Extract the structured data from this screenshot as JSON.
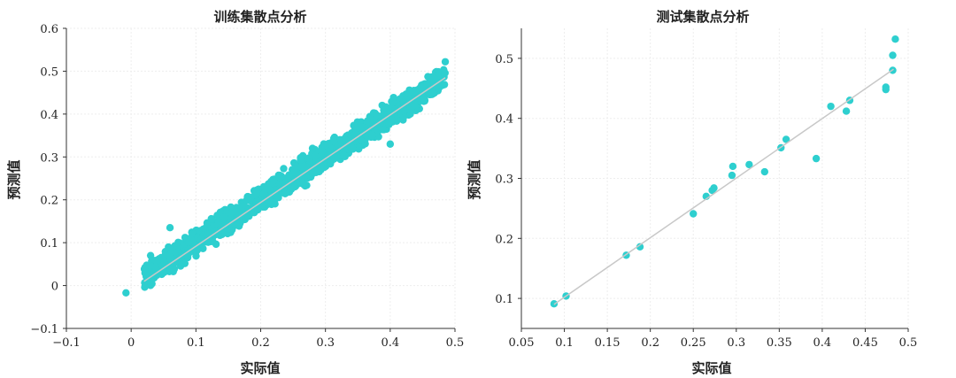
{
  "colors": {
    "point": "#2ecfcf",
    "line": "#c8c8c8"
  },
  "chart_data": [
    {
      "type": "scatter",
      "title": "训练集散点分析",
      "xlabel": "实际值",
      "ylabel": "预测值",
      "xlim": [
        -0.1,
        0.5
      ],
      "ylim": [
        -0.1,
        0.6
      ],
      "xticks": [
        -0.1,
        0,
        0.1,
        0.2,
        0.3,
        0.4,
        0.5
      ],
      "xtick_labels": [
        "−0.1",
        "0",
        "0.1",
        "0.2",
        "0.3",
        "0.4",
        "0.5"
      ],
      "yticks": [
        -0.1,
        0,
        0.1,
        0.2,
        0.3,
        0.4,
        0.5,
        0.6
      ],
      "ytick_labels": [
        "−0.1",
        "0",
        "0.1",
        "0.2",
        "0.3",
        "0.4",
        "0.5",
        "0.6"
      ],
      "grid": true,
      "reference_line": [
        [
          0.02,
          0.01
        ],
        [
          0.485,
          0.485
        ]
      ],
      "point_band": {
        "x_min": 0.02,
        "x_max": 0.485,
        "spread": 0.018,
        "count": 1300
      },
      "outliers": [
        [
          -0.008,
          -0.017
        ],
        [
          0.06,
          0.135
        ],
        [
          0.22,
          0.245
        ],
        [
          0.25,
          0.27
        ],
        [
          0.28,
          0.32
        ],
        [
          0.485,
          0.522
        ],
        [
          0.03,
          0.07
        ],
        [
          0.4,
          0.33
        ]
      ]
    },
    {
      "type": "scatter",
      "title": "测试集散点分析",
      "xlabel": "实际值",
      "ylabel": "预测值",
      "xlim": [
        0.05,
        0.5
      ],
      "ylim": [
        0.05,
        0.55
      ],
      "xticks": [
        0.05,
        0.1,
        0.15,
        0.2,
        0.25,
        0.3,
        0.35,
        0.4,
        0.45,
        0.5
      ],
      "xtick_labels": [
        "0.05",
        "0.1",
        "0.15",
        "0.2",
        "0.25",
        "0.3",
        "0.35",
        "0.4",
        "0.45",
        "0.5"
      ],
      "yticks": [
        0.1,
        0.2,
        0.3,
        0.4,
        0.5
      ],
      "ytick_labels": [
        "0.1",
        "0.2",
        "0.3",
        "0.4",
        "0.5"
      ],
      "grid": true,
      "reference_line": [
        [
          0.088,
          0.09
        ],
        [
          0.483,
          0.482
        ]
      ],
      "points": [
        [
          0.088,
          0.091
        ],
        [
          0.102,
          0.104
        ],
        [
          0.172,
          0.172
        ],
        [
          0.188,
          0.186
        ],
        [
          0.25,
          0.241
        ],
        [
          0.265,
          0.27
        ],
        [
          0.272,
          0.28
        ],
        [
          0.274,
          0.284
        ],
        [
          0.295,
          0.305
        ],
        [
          0.296,
          0.32
        ],
        [
          0.315,
          0.323
        ],
        [
          0.333,
          0.311
        ],
        [
          0.352,
          0.351
        ],
        [
          0.358,
          0.365
        ],
        [
          0.393,
          0.333
        ],
        [
          0.41,
          0.42
        ],
        [
          0.428,
          0.412
        ],
        [
          0.432,
          0.43
        ],
        [
          0.474,
          0.448
        ],
        [
          0.474,
          0.452
        ],
        [
          0.482,
          0.48
        ],
        [
          0.482,
          0.505
        ],
        [
          0.485,
          0.532
        ]
      ]
    }
  ]
}
